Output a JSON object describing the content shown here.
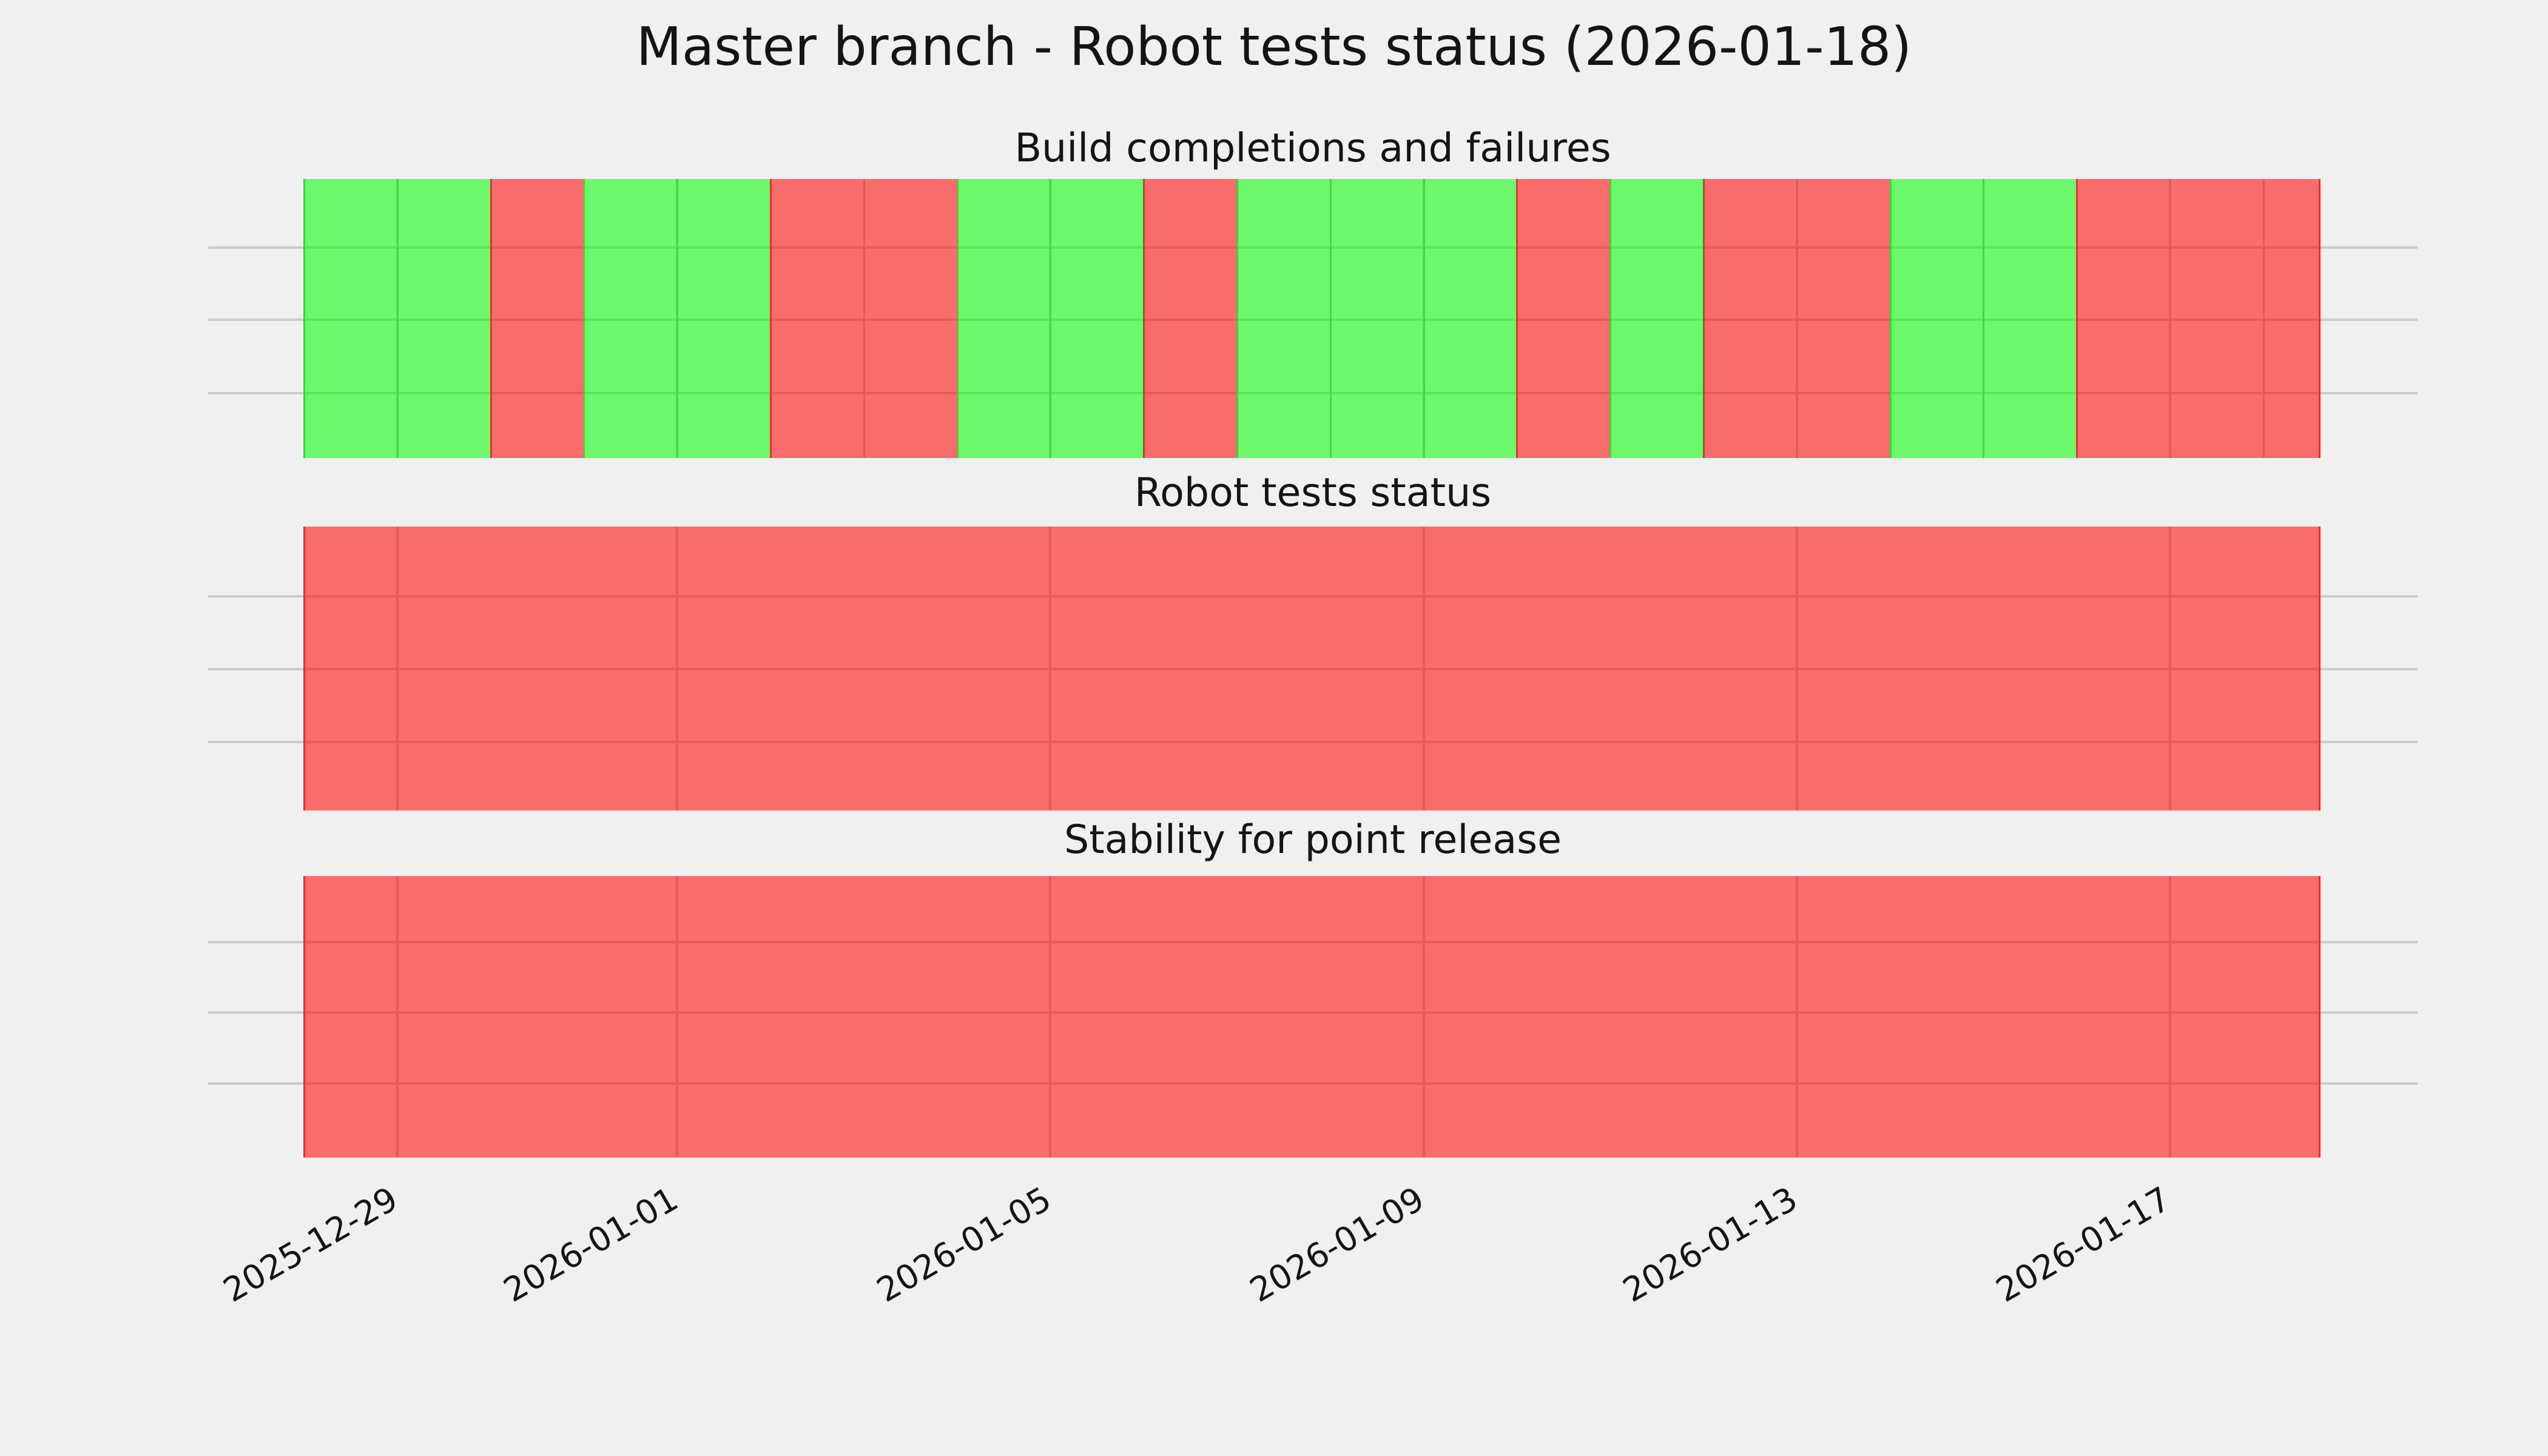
{
  "figure": {
    "title": "Master branch - Robot tests status (2026-01-18)",
    "background_color": "#F0F0F0",
    "gridline_color": "#CBCBCB"
  },
  "chart_data": {
    "type": "heatmap",
    "title": "Master branch - Robot tests status (2026-01-18)",
    "x_axis": {
      "start_date": "2025-12-28",
      "end_date": "2026-01-18",
      "total_days": 22,
      "last_day_fraction": 0.6,
      "tick_labels": [
        "2025-12-29",
        "2026-01-01",
        "2026-01-05",
        "2026-01-09",
        "2026-01-13",
        "2026-01-17"
      ],
      "tick_day_offsets": [
        1,
        4,
        8,
        12,
        16,
        20
      ],
      "tick_rotation_deg": 30
    },
    "grid": "on",
    "legend_position": "none",
    "status_colors": {
      "pass_fill": "#6CF86C",
      "fail_fill": "#F86C6C",
      "pass_edge": "#2ADF2A",
      "fail_edge": "#EE2C2C"
    },
    "subplots": [
      {
        "title": "Build completions and failures",
        "per_day_bars": true,
        "day_status": [
          "pass",
          "pass",
          "fail",
          "pass",
          "pass",
          "fail",
          "fail",
          "pass",
          "pass",
          "fail",
          "pass",
          "pass",
          "pass",
          "fail",
          "pass",
          "fail",
          "fail",
          "pass",
          "pass",
          "fail",
          "fail",
          "fail"
        ]
      },
      {
        "title": "Robot tests status",
        "per_day_bars": false,
        "day_status": [
          "fail",
          "fail",
          "fail",
          "fail",
          "fail",
          "fail",
          "fail",
          "fail",
          "fail",
          "fail",
          "fail",
          "fail",
          "fail",
          "fail",
          "fail",
          "fail",
          "fail",
          "fail",
          "fail",
          "fail",
          "fail",
          "fail"
        ]
      },
      {
        "title": "Stability for point release",
        "per_day_bars": false,
        "day_status": [
          "fail",
          "fail",
          "fail",
          "fail",
          "fail",
          "fail",
          "fail",
          "fail",
          "fail",
          "fail",
          "fail",
          "fail",
          "fail",
          "fail",
          "fail",
          "fail",
          "fail",
          "fail",
          "fail",
          "fail",
          "fail",
          "fail"
        ]
      }
    ]
  }
}
